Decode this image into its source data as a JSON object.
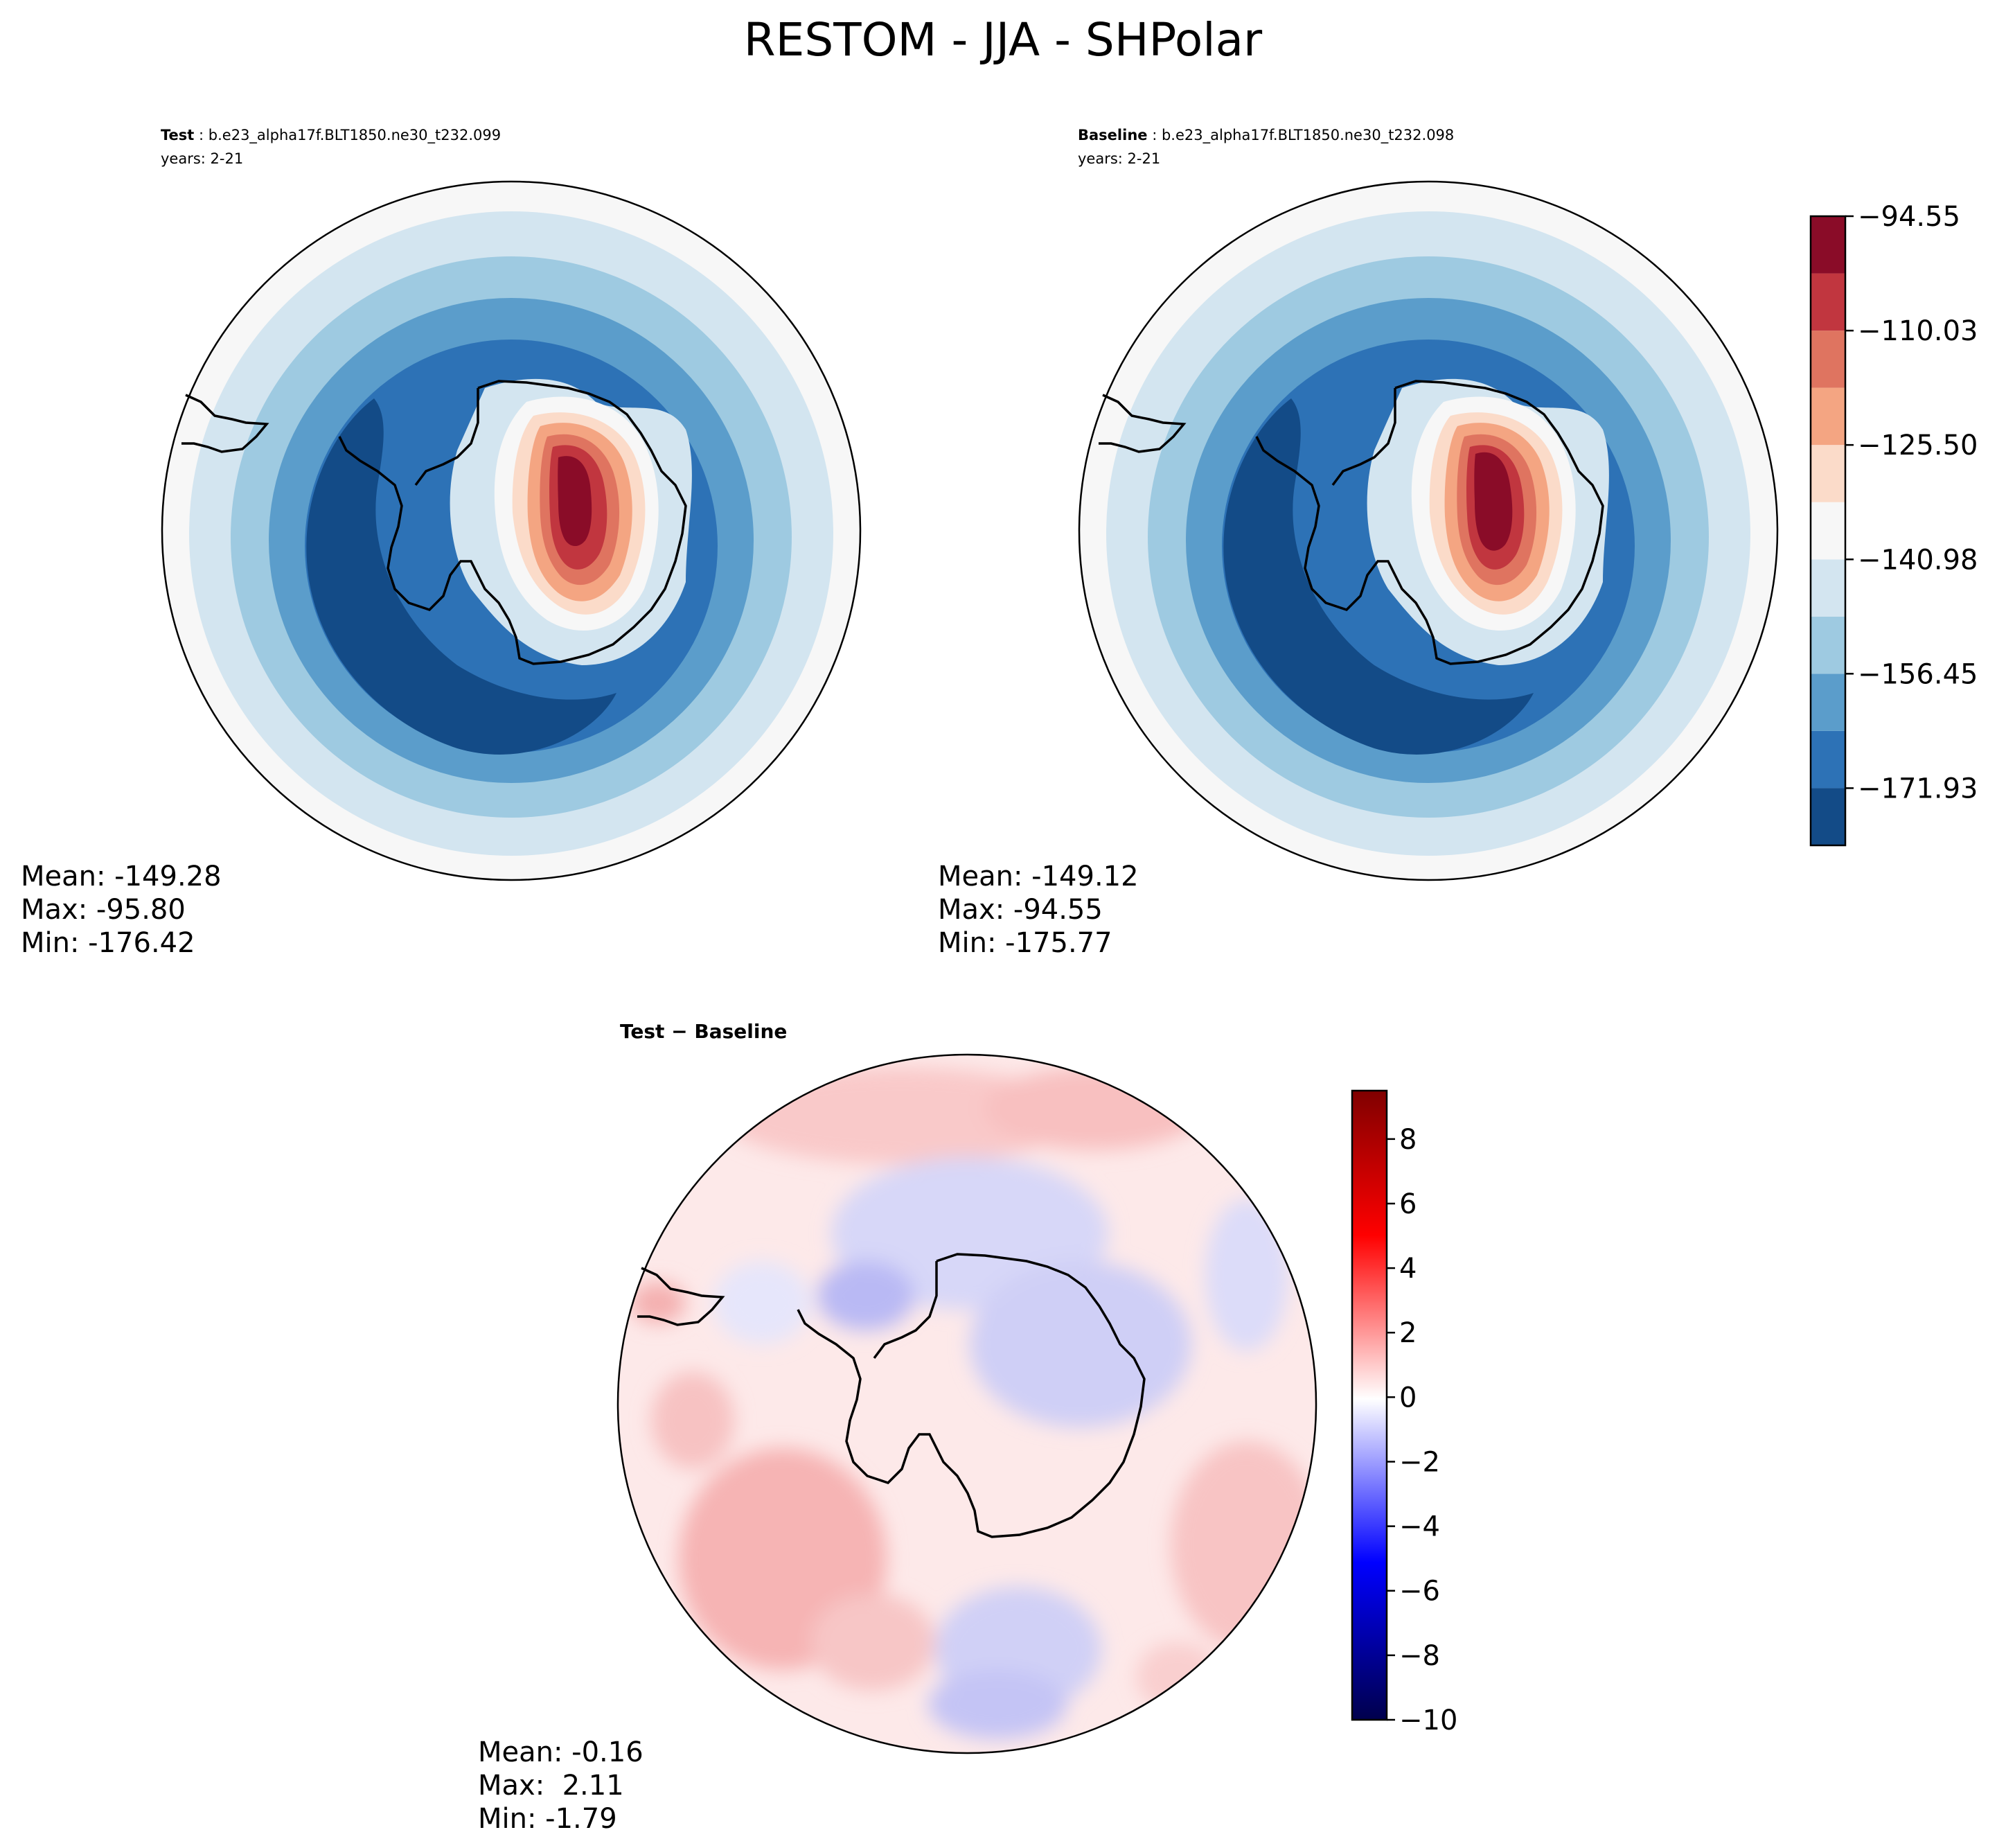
{
  "chart_data": [
    {
      "type": "heatmap",
      "projection": "south-polar-stereographic",
      "role": "test",
      "title": "RESTOM - JJA - SHPolar",
      "label_bold": "Test",
      "label_sep": ":",
      "case": "b.e23_alpha17f.BLT1850.ne30_t232.099",
      "years": "years: 2-21",
      "stats": {
        "mean": "Mean: -149.28",
        "max": "Max: -95.80",
        "min": "Min: -176.42"
      },
      "levels": [
        -179.67,
        -171.93,
        -164.19,
        -156.45,
        -148.72,
        -140.98,
        -133.24,
        -125.5,
        -117.76,
        -110.03,
        -102.29,
        -94.55
      ]
    },
    {
      "type": "heatmap",
      "projection": "south-polar-stereographic",
      "role": "baseline",
      "label_bold": "Baseline",
      "label_sep": ":",
      "case": "b.e23_alpha17f.BLT1850.ne30_t232.098",
      "years": "years: 2-21",
      "stats": {
        "mean": "Mean: -149.12",
        "max": "Max: -94.55",
        "min": "Min: -175.77"
      }
    },
    {
      "type": "heatmap",
      "projection": "south-polar-stereographic",
      "role": "difference",
      "title": "Test − Baseline",
      "stats": {
        "mean": "Mean: -0.16",
        "max": "Max:  2.11",
        "min": "Min: -1.79"
      },
      "colorbar_range": [
        -10,
        9.5
      ]
    }
  ],
  "colorbar_main": {
    "ticks": [
      -94.55,
      -110.03,
      -125.5,
      -140.98,
      -156.45,
      -171.93
    ],
    "tick_labels": [
      "−94.55",
      "−110.03",
      "−125.50",
      "−140.98",
      "−156.45",
      "−171.93"
    ],
    "colors": [
      "#134b87",
      "#2d72b6",
      "#5b9dcb",
      "#9ecae1",
      "#d3e5f0",
      "#f7f7f7",
      "#fbdbc9",
      "#f4a582",
      "#df7460",
      "#c1363f",
      "#8a0c28"
    ]
  },
  "colorbar_diff": {
    "ticks": [
      8,
      6,
      4,
      2,
      0,
      -2,
      -4,
      -6,
      -8,
      -10
    ],
    "tick_labels": [
      "8",
      "6",
      "4",
      "2",
      "0",
      "−2",
      "−4",
      "−6",
      "−8",
      "−10"
    ]
  }
}
